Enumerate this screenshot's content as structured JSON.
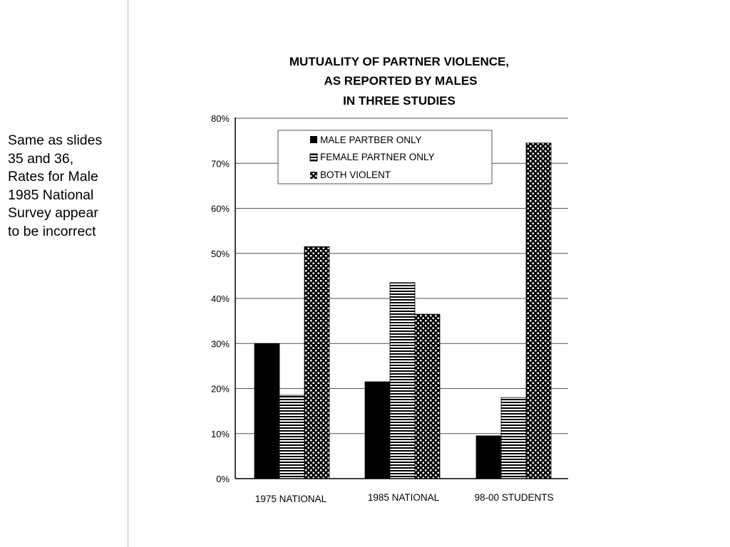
{
  "side_note": {
    "lines": [
      "Same as slides",
      "35 and 36,",
      "Rates for Male",
      "1985 National",
      "Survey appear",
      "to be incorrect"
    ]
  },
  "chart_data": {
    "type": "bar",
    "title_lines": [
      "MUTUALITY OF PARTNER VIOLENCE,",
      "AS REPORTED BY MALES",
      "IN THREE STUDIES"
    ],
    "categories": [
      "1975 NATIONAL",
      "1985 NATIONAL",
      "98-00 STUDENTS"
    ],
    "series": [
      {
        "name": "MALE PARTBER ONLY",
        "values": [
          30,
          21.5,
          9.5
        ],
        "pattern": "solid"
      },
      {
        "name": "FEMALE PARTNER ONLY",
        "values": [
          18.5,
          43.5,
          18
        ],
        "pattern": "horizontal-lines"
      },
      {
        "name": "BOTH VIOLENT",
        "values": [
          51.5,
          36.5,
          74.5
        ],
        "pattern": "checker"
      }
    ],
    "y_ticks": [
      "0%",
      "10%",
      "20%",
      "30%",
      "40%",
      "50%",
      "60%",
      "70%",
      "80%"
    ],
    "ylim": [
      0,
      80
    ],
    "grid": true,
    "legend_position": "top-left inside plot",
    "colors": {
      "bars": "#000000",
      "grid": "#555555",
      "background": "#ffffff"
    }
  }
}
